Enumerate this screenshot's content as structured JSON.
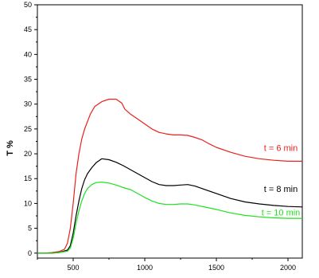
{
  "chart_data": {
    "type": "line",
    "xlabel": "",
    "ylabel": "T %",
    "xlim": [
      250,
      2100
    ],
    "ylim": [
      -1,
      50
    ],
    "xticks": [
      500,
      1000,
      1500,
      2000
    ],
    "xtick_labels": [
      "500",
      "1000",
      "1500",
      "2000"
    ],
    "yticks": [
      0,
      5,
      10,
      15,
      20,
      25,
      30,
      35,
      40,
      45,
      50
    ],
    "ytick_labels": [
      "0",
      "5",
      "10",
      "15",
      "20",
      "25",
      "30",
      "35",
      "40",
      "45",
      "50"
    ],
    "grid": false,
    "series": [
      {
        "name": "t = 6 min",
        "color": "#e8221c",
        "x": [
          250,
          300,
          350,
          400,
          440,
          460,
          480,
          500,
          520,
          540,
          560,
          580,
          600,
          620,
          650,
          700,
          750,
          800,
          840,
          860,
          900,
          950,
          1000,
          1050,
          1100,
          1150,
          1200,
          1250,
          1300,
          1350,
          1400,
          1450,
          1500,
          1600,
          1700,
          1800,
          1900,
          2000,
          2100
        ],
        "y": [
          0,
          0,
          0.1,
          0.3,
          0.8,
          2,
          5,
          10,
          16,
          20,
          23,
          25,
          26.5,
          28,
          29.5,
          30.5,
          31,
          31,
          30.2,
          29,
          28,
          27,
          26,
          25,
          24.3,
          24,
          23.8,
          23.8,
          23.7,
          23.3,
          22.8,
          22,
          21.3,
          20.3,
          19.5,
          19,
          18.7,
          18.5,
          18.5
        ]
      },
      {
        "name": "t = 8 min",
        "color": "#000000",
        "x": [
          250,
          300,
          350,
          400,
          460,
          480,
          500,
          520,
          540,
          560,
          580,
          600,
          630,
          660,
          700,
          750,
          800,
          850,
          900,
          950,
          1000,
          1050,
          1100,
          1150,
          1200,
          1250,
          1300,
          1350,
          1400,
          1500,
          1600,
          1700,
          1800,
          1900,
          2000,
          2100
        ],
        "y": [
          0,
          0,
          0,
          0.1,
          0.6,
          1.5,
          4,
          7.5,
          10.5,
          13,
          14.8,
          16,
          17.2,
          18.2,
          19,
          18.8,
          18.3,
          17.6,
          16.8,
          16,
          15.2,
          14.4,
          13.8,
          13.6,
          13.6,
          13.7,
          13.8,
          13.5,
          13,
          12,
          11,
          10.3,
          9.9,
          9.6,
          9.4,
          9.3
        ]
      },
      {
        "name": "t = 10 min",
        "color": "#1ee21e",
        "x": [
          250,
          300,
          350,
          400,
          460,
          480,
          500,
          520,
          540,
          560,
          580,
          600,
          630,
          660,
          700,
          750,
          800,
          830,
          850,
          900,
          950,
          1000,
          1050,
          1100,
          1150,
          1200,
          1250,
          1300,
          1350,
          1400,
          1500,
          1600,
          1700,
          1800,
          1900,
          2000,
          2100
        ],
        "y": [
          0,
          0,
          0,
          0.1,
          0.4,
          1,
          3,
          6,
          8.5,
          10.5,
          12,
          13,
          13.8,
          14.2,
          14.3,
          14.1,
          13.7,
          13.4,
          13.2,
          12.8,
          12,
          11.2,
          10.5,
          10,
          9.8,
          9.8,
          9.9,
          9.9,
          9.7,
          9.4,
          8.8,
          8.1,
          7.6,
          7.3,
          7.1,
          7,
          7
        ]
      }
    ],
    "annotations": [
      {
        "text": "t = 6 min",
        "color": "#e8221c",
        "x": 1950,
        "y": 20.6
      },
      {
        "text": "t = 8 min",
        "color": "#000000",
        "x": 1950,
        "y": 12.3
      },
      {
        "text": "t = 10 min",
        "color": "#1ee21e",
        "x": 1950,
        "y": 7.6
      }
    ]
  }
}
